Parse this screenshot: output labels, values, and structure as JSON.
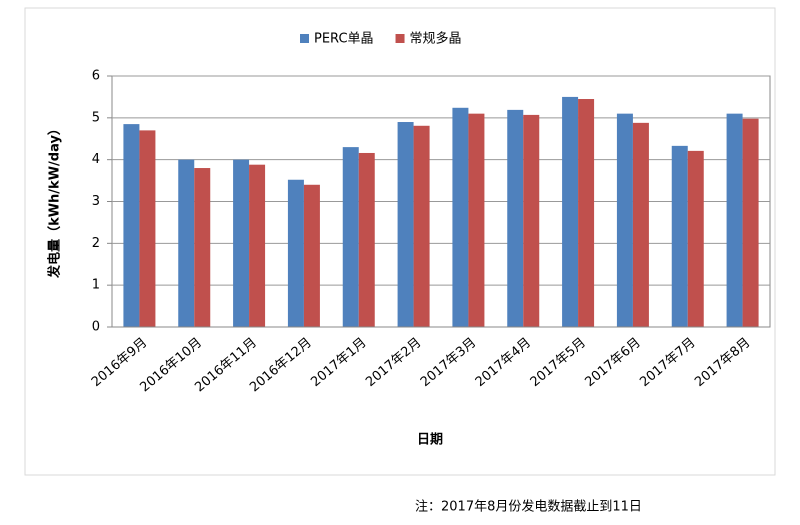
{
  "chart_data": {
    "type": "bar",
    "categories": [
      "2016年9月",
      "2016年10月",
      "2016年11月",
      "2016年12月",
      "2017年1月",
      "2017年2月",
      "2017年3月",
      "2017年4月",
      "2017年5月",
      "2017年6月",
      "2017年7月",
      "2017年8月"
    ],
    "series": [
      {
        "name": "PERC单晶",
        "color": "#4f81bd",
        "values": [
          4.85,
          4.0,
          4.0,
          3.52,
          4.3,
          4.9,
          5.24,
          5.19,
          5.5,
          5.1,
          4.33,
          5.1
        ]
      },
      {
        "name": "常规多晶",
        "color": "#c0504d",
        "values": [
          4.7,
          3.8,
          3.88,
          3.4,
          4.16,
          4.81,
          5.1,
          5.07,
          5.45,
          4.88,
          4.21,
          4.98
        ]
      }
    ],
    "ylim": [
      0,
      6
    ],
    "yticks": [
      0,
      1,
      2,
      3,
      4,
      5,
      6
    ],
    "grid": true,
    "y_label": "发电量（kWh/kW/day）",
    "x_label": "日期",
    "note": "注：2017年8月份发电数据截止到11日"
  }
}
